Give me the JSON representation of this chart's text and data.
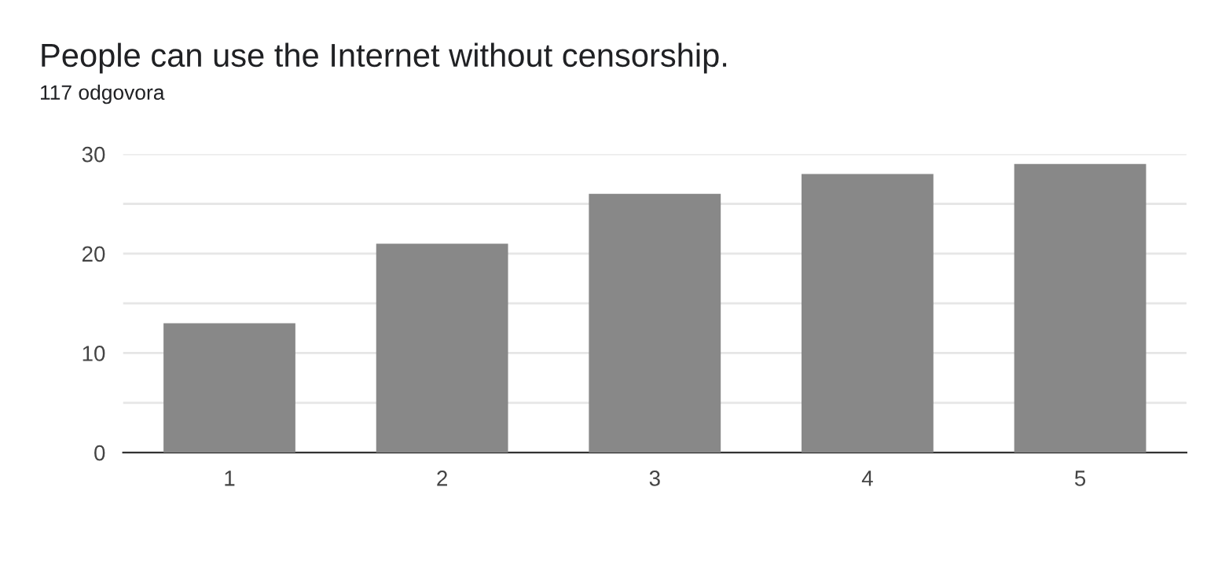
{
  "chart_data": {
    "type": "bar",
    "title": "People can use the Internet without censorship.",
    "subtitle": "117 odgovora",
    "categories": [
      "1",
      "2",
      "3",
      "4",
      "5"
    ],
    "values": [
      13,
      21,
      26,
      28,
      29
    ],
    "color": "#888888",
    "ylim": [
      0,
      30
    ],
    "yticks": [
      0,
      {
        "value": 5,
        "label": null
      },
      10,
      {
        "value": 15,
        "label": null
      },
      20,
      {
        "value": 25,
        "label": null
      },
      30
    ],
    "grid": "y"
  }
}
